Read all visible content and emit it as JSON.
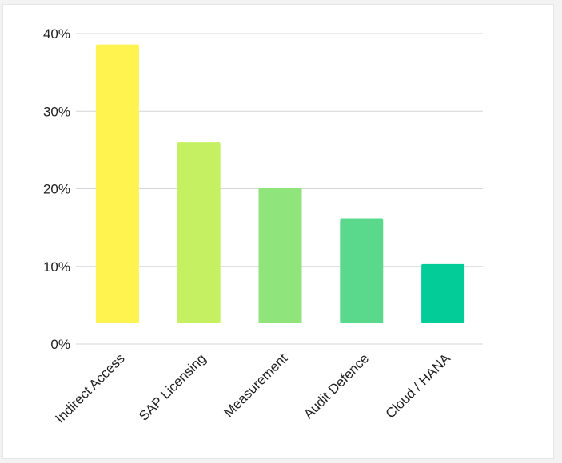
{
  "chart_data": {
    "type": "bar",
    "categories": [
      "Indirect Access",
      "SAP Licensing",
      "Measurement",
      "Audit Defence",
      "Cloud / HANA"
    ],
    "values": [
      37.5,
      24.9,
      19.0,
      15.1,
      9.2
    ],
    "colors": [
      "#fff44f",
      "#c5f061",
      "#8fe57c",
      "#5ad98d",
      "#04cc98"
    ],
    "yticks": [
      "0%",
      "10%",
      "20%",
      "30%",
      "40%"
    ],
    "ylim": [
      0,
      40
    ],
    "grid": true,
    "legend": "none"
  }
}
